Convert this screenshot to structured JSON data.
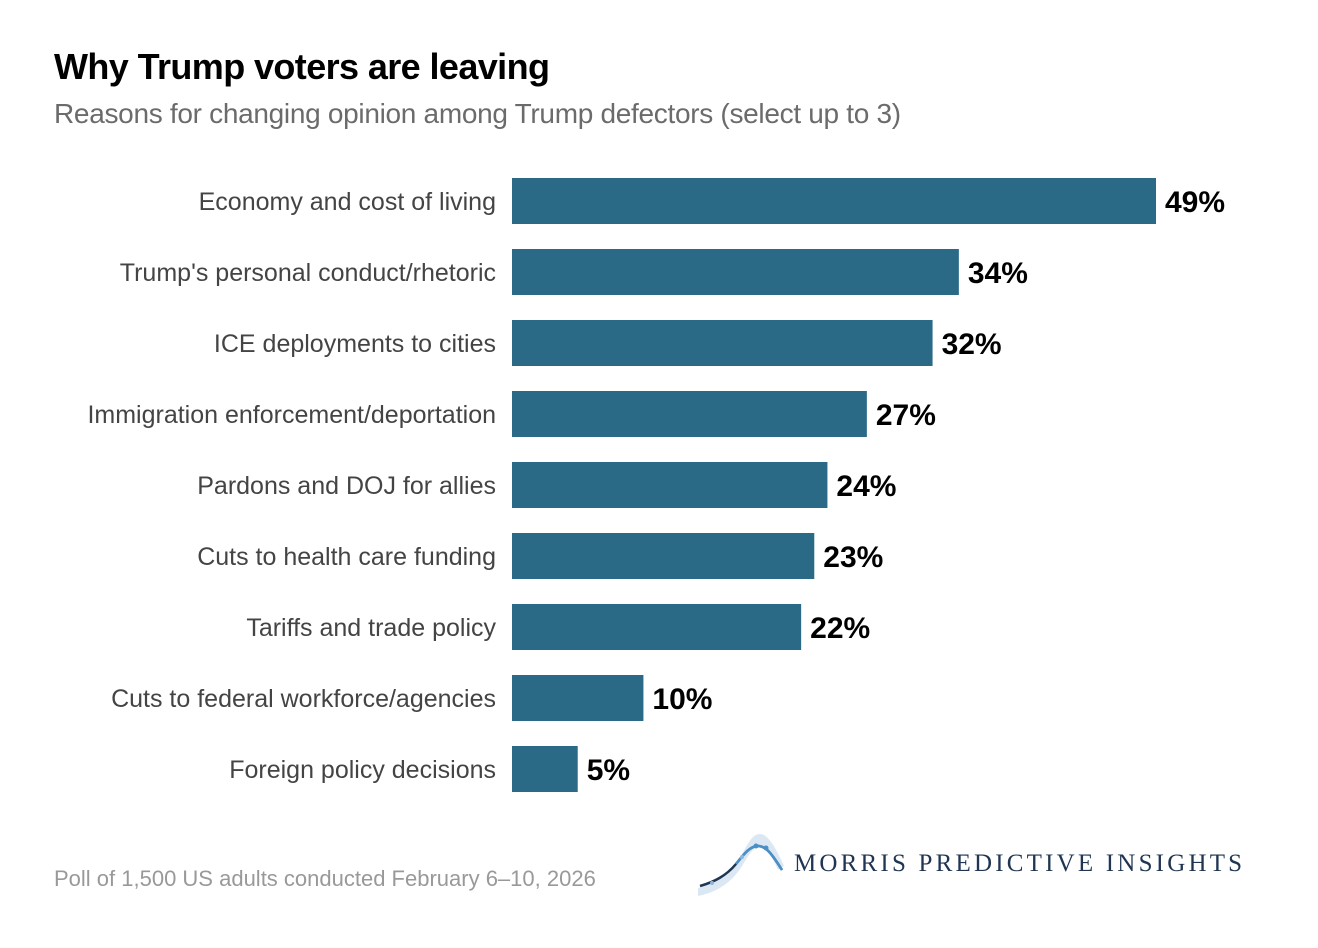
{
  "chart_data": {
    "type": "bar",
    "orientation": "horizontal",
    "title": "Why Trump voters are leaving",
    "subtitle": "Reasons for changing opinion among Trump defectors (select up to 3)",
    "categories": [
      "Economy and cost of living",
      "Trump's personal conduct/rhetoric",
      "ICE deployments to cities",
      "Immigration enforcement/deportation",
      "Pardons and DOJ for allies",
      "Cuts to health care funding",
      "Tariffs and trade policy",
      "Cuts to federal workforce/agencies",
      "Foreign policy decisions"
    ],
    "values": [
      49,
      34,
      32,
      27,
      24,
      23,
      22,
      10,
      5
    ],
    "value_labels": [
      "49%",
      "34%",
      "32%",
      "27%",
      "24%",
      "23%",
      "22%",
      "10%",
      "5%"
    ],
    "unit": "%",
    "xlabel": "",
    "ylabel": "",
    "xlim": [
      0,
      49
    ],
    "grid": false,
    "legend": "none",
    "bar_color": "#2b6a87"
  },
  "footer": {
    "note": "Poll of 1,500 US adults conducted February 6–10, 2026",
    "brand": "MORRIS PREDICTIVE INSIGHTS",
    "brand_color": "#1f3552",
    "logo_icon": "bell-curve-icon"
  }
}
